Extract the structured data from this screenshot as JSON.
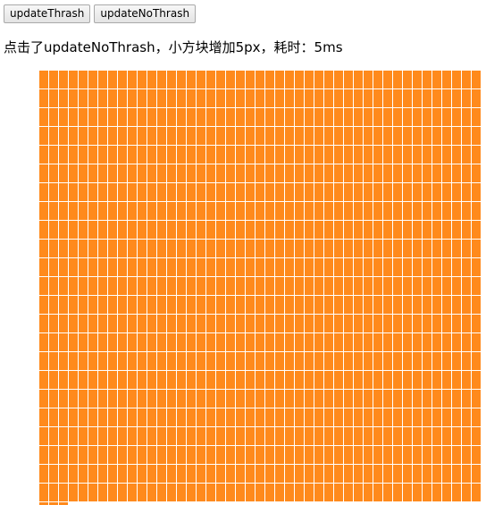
{
  "toolbar": {
    "update_thrash_label": "updateThrash",
    "update_no_thrash_label": "updateNoThrash"
  },
  "status": {
    "message": "点击了updateNoThrash，小方块增加5px，耗时：5ms"
  },
  "grid": {
    "tile_color": "#ff8a1c",
    "tile_count": 1038
  }
}
